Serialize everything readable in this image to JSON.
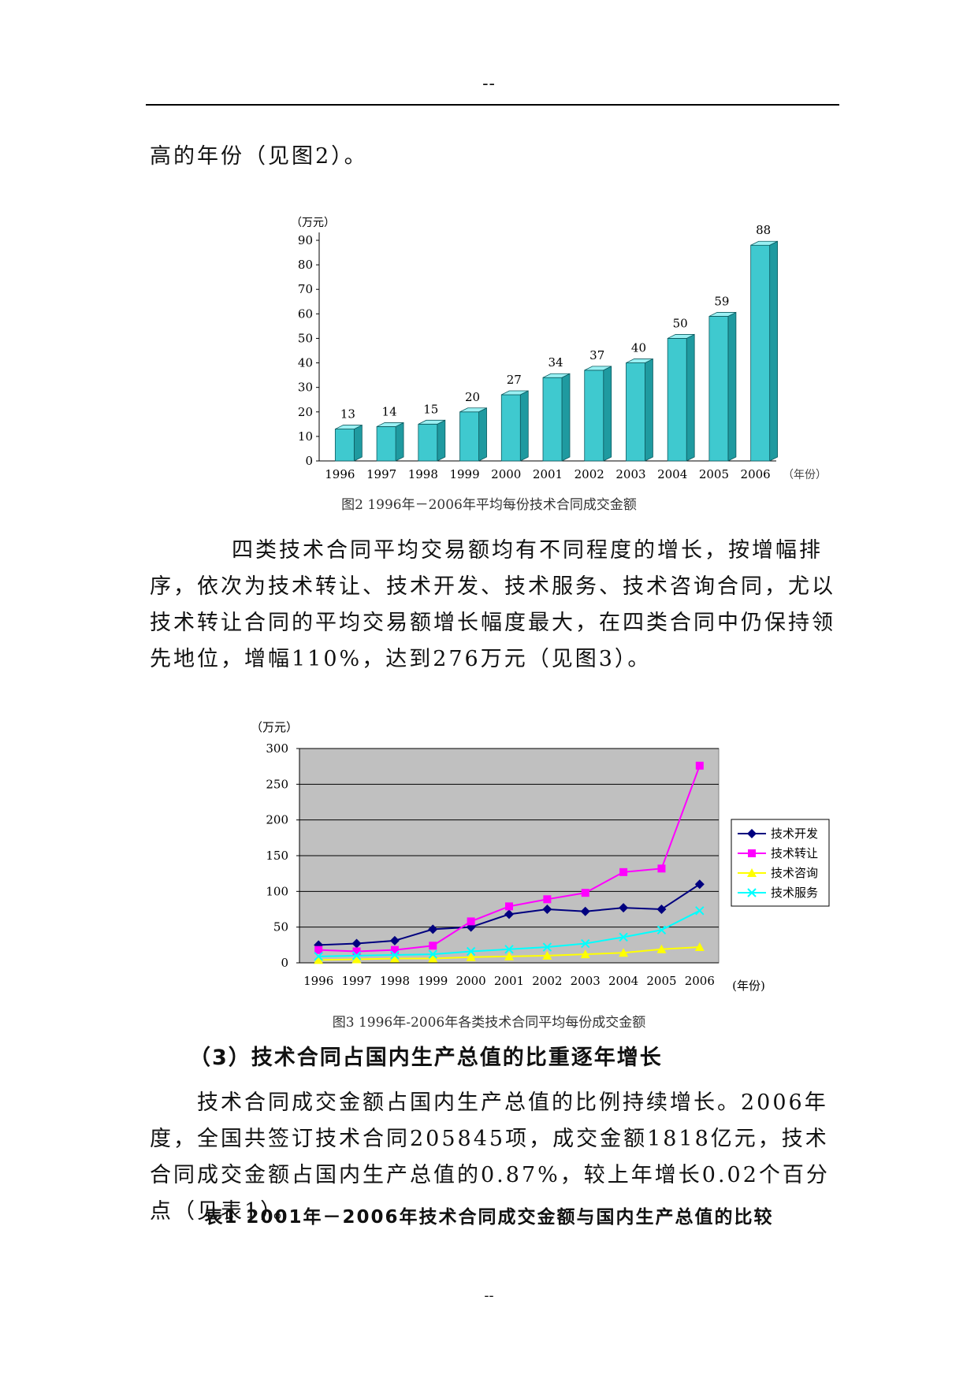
{
  "page": {
    "header_mark": "--",
    "footer_mark": "--",
    "p1": "高的年份（见图2）。",
    "p2": "四类技术合同平均交易额均有不同程度的增长，按增幅排序，依次为技术转让、技术开发、技术服务、技术咨询合同，尤以技术转让合同的平均交易额增长幅度最大，在四类合同中仍保持领先地位，增幅110%，达到276万元（见图3）。",
    "heading3": "（3）技术合同占国内生产总值的比重逐年增长",
    "p3": "技术合同成交金额占国内生产总值的比例持续增长。2006年度，全国共签订技术合同205845项，成交金额1818亿元，技术合同成交金额占国内生产总值的0.87%，较上年增长0.02个百分点（见表1）。",
    "table1_title": "表1  2001年－2006年技术合同成交金额与国内生产总值的比较"
  },
  "chart_data": [
    {
      "type": "bar",
      "title": "图2  1996年－2006年平均每份技术合同成交金额",
      "ylabel": "（万元）",
      "xlabel": "（年份）",
      "categories": [
        "1996",
        "1997",
        "1998",
        "1999",
        "2000",
        "2001",
        "2002",
        "2003",
        "2004",
        "2005",
        "2006"
      ],
      "values": [
        13,
        14,
        15,
        20,
        27,
        34,
        37,
        40,
        50,
        59,
        88
      ],
      "ylim": [
        0,
        90
      ],
      "yticks": [
        0,
        10,
        20,
        30,
        40,
        50,
        60,
        70,
        80,
        90
      ],
      "bar_color": "#3fc9cf",
      "grid": false
    },
    {
      "type": "line",
      "title": "图3 1996年-2006年各类技术合同平均每份成交金额",
      "ylabel": "（万元）",
      "xlabel": "(年份)",
      "x": [
        "1996",
        "1997",
        "1998",
        "1999",
        "2000",
        "2001",
        "2002",
        "2003",
        "2004",
        "2005",
        "2006"
      ],
      "ylim": [
        0,
        300
      ],
      "yticks": [
        0,
        50,
        100,
        150,
        200,
        250,
        300
      ],
      "grid": true,
      "plot_bg": "#c0c0c0",
      "legend_position": "right",
      "series": [
        {
          "name": "技术开发",
          "color": "#00007f",
          "marker": "diamond",
          "values": [
            25,
            27,
            31,
            47,
            50,
            68,
            75,
            72,
            77,
            75,
            110
          ]
        },
        {
          "name": "技术转让",
          "color": "#ff00ff",
          "marker": "square",
          "values": [
            18,
            16,
            18,
            24,
            58,
            79,
            89,
            98,
            127,
            132,
            276
          ]
        },
        {
          "name": "技术咨询",
          "color": "#ffff00",
          "marker": "triangle",
          "values": [
            4,
            5,
            6,
            6,
            8,
            9,
            10,
            12,
            14,
            19,
            22
          ]
        },
        {
          "name": "技术服务",
          "color": "#00ffff",
          "marker": "x",
          "values": [
            9,
            10,
            11,
            12,
            16,
            19,
            22,
            27,
            36,
            46,
            73
          ]
        }
      ]
    }
  ]
}
